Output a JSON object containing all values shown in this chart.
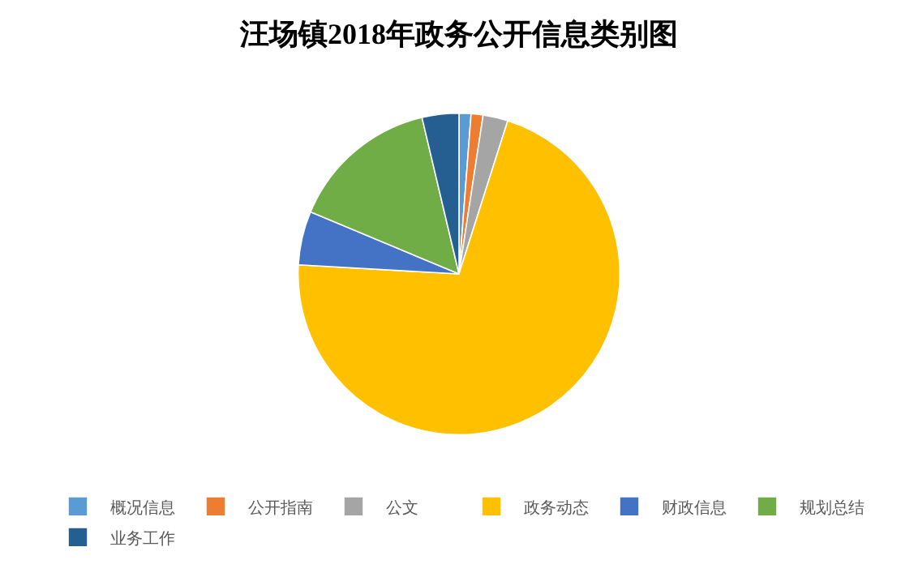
{
  "chart_data": {
    "type": "pie",
    "title": "汪场镇2018年政务公开信息类别图",
    "categories": [
      "概况信息",
      "公开指南",
      "公文",
      "政务动态",
      "财政信息",
      "规划总结",
      "业务工作"
    ],
    "values": [
      1.2,
      1.2,
      2.5,
      71,
      5.4,
      15,
      3.7
    ],
    "colors": [
      "#5b9bd5",
      "#ed7d31",
      "#a5a5a5",
      "#ffc000",
      "#4472c4",
      "#70ad47",
      "#255e91"
    ],
    "legend": "bottom"
  }
}
